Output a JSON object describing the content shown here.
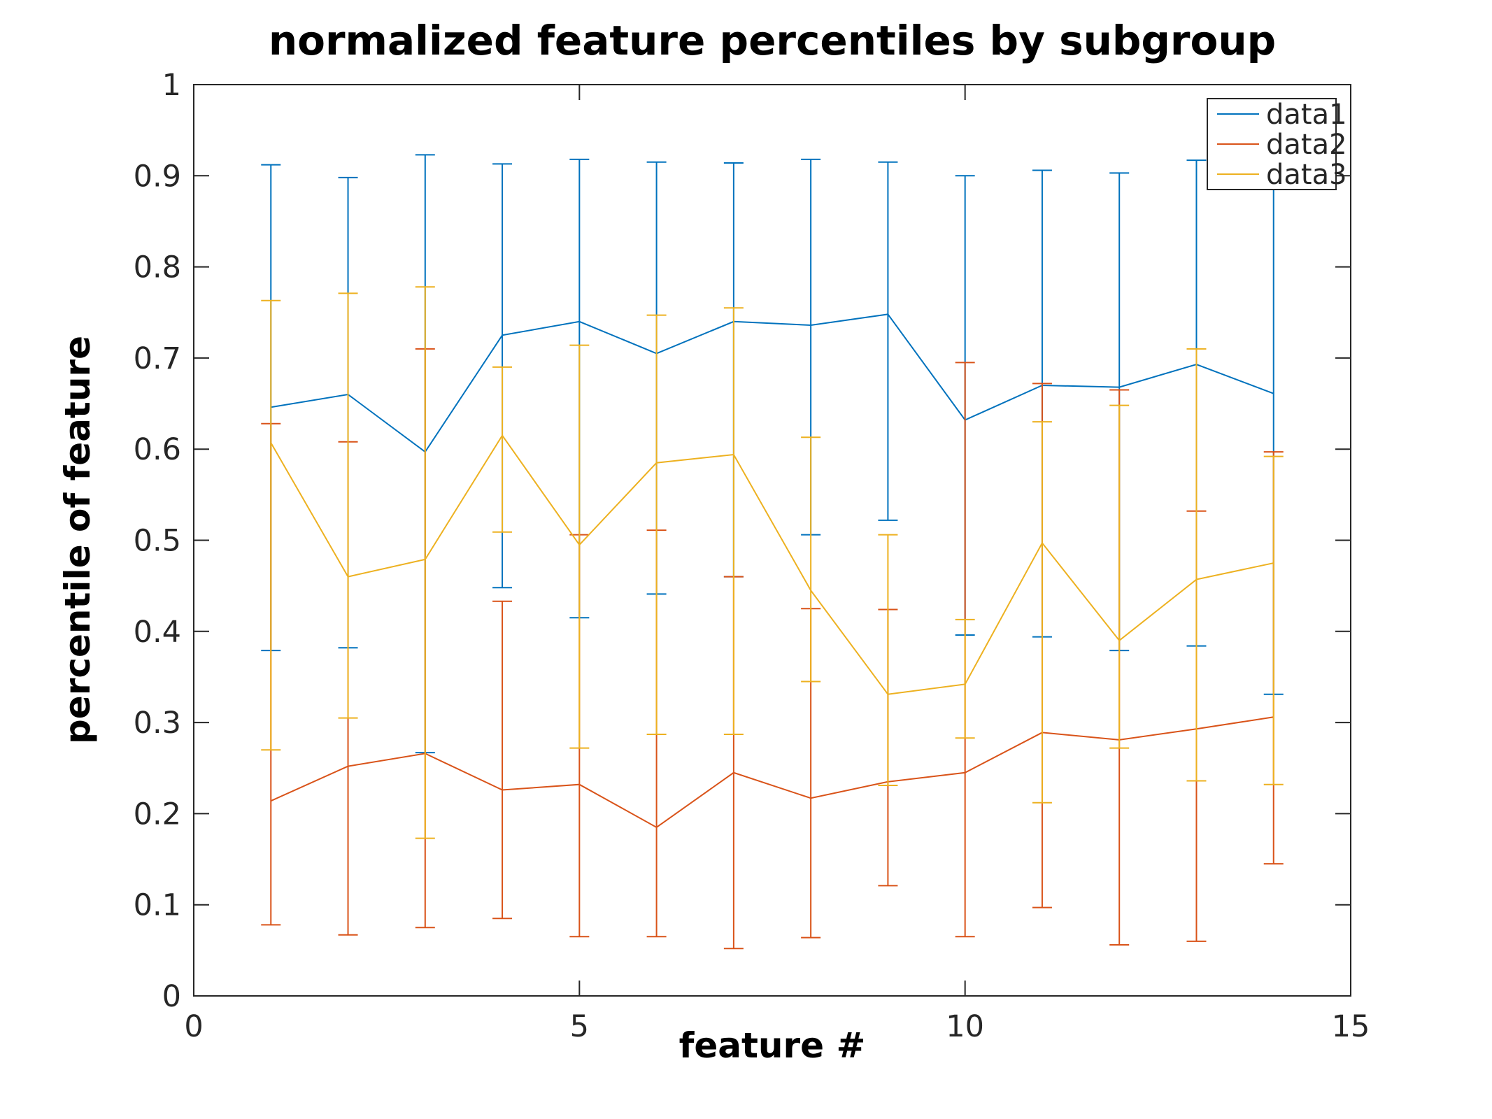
{
  "chart_data": {
    "type": "line",
    "subtype": "errorbar",
    "title": "normalized feature percentiles by subgroup",
    "xlabel": "feature #",
    "ylabel": "percentile of feature",
    "xlim": [
      0,
      15
    ],
    "ylim": [
      0,
      1
    ],
    "xticks": [
      0,
      5,
      10,
      15
    ],
    "xtick_labels": [
      "0",
      "5",
      "10",
      "15"
    ],
    "yticks": [
      0,
      0.1,
      0.2,
      0.3,
      0.4,
      0.5,
      0.6,
      0.7,
      0.8,
      0.9,
      1
    ],
    "ytick_labels": [
      "0",
      "0.1",
      "0.2",
      "0.3",
      "0.4",
      "0.5",
      "0.6",
      "0.7",
      "0.8",
      "0.9",
      "1"
    ],
    "grid": false,
    "axis_color": "#262626",
    "background_color": "#ffffff",
    "legend": {
      "position": "top-right",
      "entries": [
        "data1",
        "data2",
        "data3"
      ]
    },
    "x": [
      1,
      2,
      3,
      4,
      5,
      6,
      7,
      8,
      9,
      10,
      11,
      12,
      13,
      14
    ],
    "series": [
      {
        "name": "data1",
        "color": "#0072BD",
        "values": [
          0.646,
          0.66,
          0.597,
          0.725,
          0.74,
          0.705,
          0.74,
          0.736,
          0.748,
          0.632,
          0.67,
          0.668,
          0.693,
          0.661
        ],
        "upper": [
          0.912,
          0.898,
          0.923,
          0.913,
          0.918,
          0.915,
          0.914,
          0.918,
          0.915,
          0.9,
          0.906,
          0.903,
          0.917,
          0.915
        ],
        "lower": [
          0.379,
          0.382,
          0.267,
          0.448,
          0.415,
          0.441,
          0.46,
          0.506,
          0.522,
          0.396,
          0.394,
          0.379,
          0.384,
          0.331
        ]
      },
      {
        "name": "data2",
        "color": "#D95319",
        "values": [
          0.214,
          0.252,
          0.266,
          0.226,
          0.232,
          0.185,
          0.245,
          0.217,
          0.235,
          0.245,
          0.289,
          0.281,
          0.293,
          0.306
        ],
        "upper": [
          0.628,
          0.608,
          0.71,
          0.433,
          0.506,
          0.511,
          0.46,
          0.425,
          0.424,
          0.695,
          0.672,
          0.665,
          0.532,
          0.597
        ],
        "lower": [
          0.078,
          0.067,
          0.075,
          0.085,
          0.065,
          0.065,
          0.052,
          0.064,
          0.121,
          0.065,
          0.097,
          0.056,
          0.06,
          0.145
        ]
      },
      {
        "name": "data3",
        "color": "#EDB120",
        "values": [
          0.607,
          0.46,
          0.479,
          0.615,
          0.495,
          0.585,
          0.594,
          0.445,
          0.331,
          0.342,
          0.497,
          0.39,
          0.457,
          0.475
        ],
        "upper": [
          0.763,
          0.771,
          0.778,
          0.69,
          0.714,
          0.747,
          0.755,
          0.613,
          0.506,
          0.413,
          0.63,
          0.648,
          0.71,
          0.592
        ],
        "lower": [
          0.27,
          0.305,
          0.173,
          0.509,
          0.272,
          0.287,
          0.287,
          0.345,
          0.231,
          0.283,
          0.212,
          0.272,
          0.236,
          0.232
        ]
      }
    ]
  }
}
